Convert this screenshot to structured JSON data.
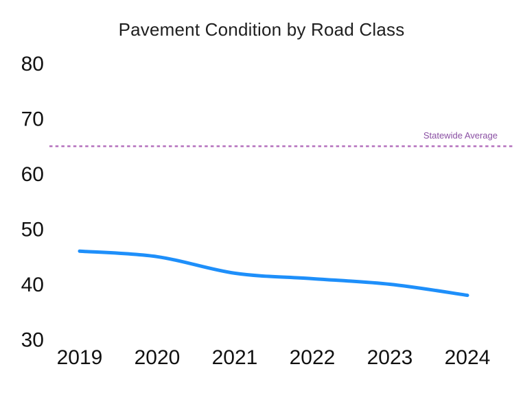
{
  "chart_data": {
    "type": "line",
    "title": "Pavement Condition by Road Class",
    "xlabel": "",
    "ylabel": "",
    "categories": [
      "2019",
      "2020",
      "2021",
      "2022",
      "2023",
      "2024"
    ],
    "series": [
      {
        "name": "Road Class",
        "values": [
          46,
          45,
          42,
          41,
          40,
          38
        ],
        "color": "#1e8ffa",
        "line_width": 5,
        "smooth": true
      }
    ],
    "reference_line": {
      "label": "Statewide Average",
      "value": 65,
      "line_color": "#b470bd",
      "label_color": "#8a4fa3",
      "style": "dotted"
    },
    "yticks": [
      30,
      40,
      50,
      60,
      70,
      80
    ],
    "ylim": [
      30,
      80
    ],
    "grid": false,
    "legend_position": "none",
    "title_color": "#1f1f1f",
    "tick_color": "#111111",
    "background": "#ffffff"
  }
}
